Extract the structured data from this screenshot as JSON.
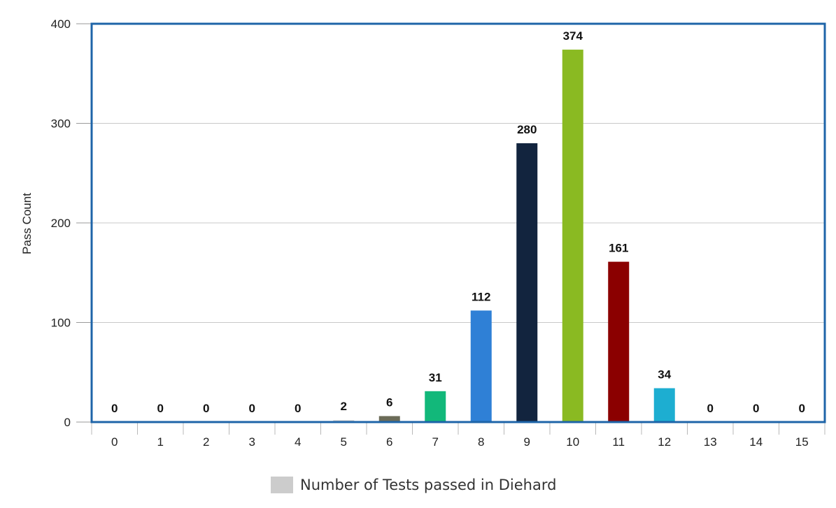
{
  "chart_data": {
    "type": "bar",
    "title": "",
    "xlabel": "",
    "ylabel": "Pass Count",
    "categories": [
      "0",
      "1",
      "2",
      "3",
      "4",
      "5",
      "6",
      "7",
      "8",
      "9",
      "10",
      "11",
      "12",
      "13",
      "14",
      "15"
    ],
    "values": [
      0,
      0,
      0,
      0,
      0,
      2,
      6,
      31,
      112,
      280,
      374,
      161,
      34,
      0,
      0,
      0
    ],
    "data_labels": [
      "0",
      "0",
      "0",
      "0",
      "0",
      "2",
      "6",
      "31",
      "112",
      "280",
      "374",
      "161",
      "34",
      "0",
      "0",
      "0"
    ],
    "bar_colors": [
      "#888888",
      "#888888",
      "#888888",
      "#888888",
      "#888888",
      "#d3d3d3",
      "#6b6b58",
      "#12b87a",
      "#2f80d6",
      "#12243e",
      "#8aba22",
      "#8b0000",
      "#1daed1",
      "#888888",
      "#888888",
      "#888888"
    ],
    "ylim": [
      0,
      400
    ],
    "yticks": [
      "0",
      "100",
      "200",
      "300",
      "400"
    ],
    "grid": true,
    "legend": {
      "label": "Number of Tests passed in Diehard",
      "color": "#cccccc",
      "position": "bottom"
    },
    "frame_color": "#1e64a8"
  }
}
